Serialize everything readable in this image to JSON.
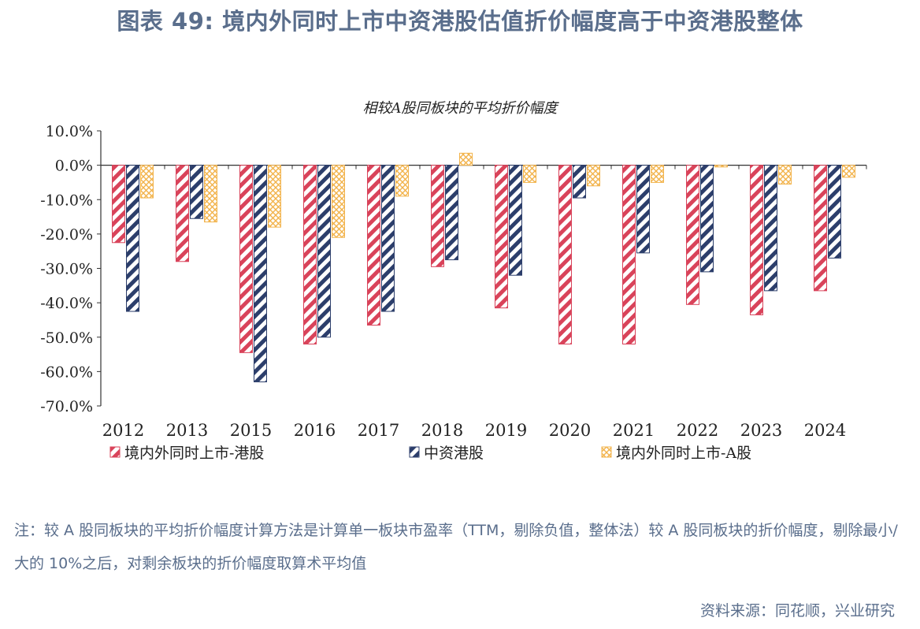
{
  "figure_title": "图表 49: 境内外同时上市中资港股估值折价幅度高于中资港股整体",
  "note": "注：较 A 股同板块的平均折价幅度计算方法是计算单一板块市盈率（TTM，剔除负值，整体法）较 A 股同板块的折价幅度，剔除最小/大的 10%之后，对剩余板块的折价幅度取算术平均值",
  "source": "资料来源：同花顺，兴业研究",
  "colors": {
    "text": "#5A6E8C",
    "s1": "#D9435A",
    "s2": "#2C3E6B",
    "s3": "#F2B34B"
  },
  "chart_data": {
    "type": "bar",
    "title": "相较A股同板块的平均折价幅度",
    "xlabel": "",
    "ylabel": "",
    "ylim": [
      -70,
      10
    ],
    "y_ticks": [
      "10.0%",
      "0.0%",
      "-10.0%",
      "-20.0%",
      "-30.0%",
      "-40.0%",
      "-50.0%",
      "-60.0%",
      "-70.0%"
    ],
    "y_tick_values": [
      10,
      0,
      -10,
      -20,
      -30,
      -40,
      -50,
      -60,
      -70
    ],
    "categories": [
      "2012",
      "2013",
      "2015",
      "2016",
      "2017",
      "2018",
      "2019",
      "2020",
      "2021",
      "2022",
      "2023",
      "2024"
    ],
    "series": [
      {
        "name": "境内外同时上市-港股",
        "color": "#D9435A",
        "pattern": "diagonal",
        "values": [
          -22.5,
          -28.0,
          -54.5,
          -52.0,
          -46.5,
          -29.5,
          -41.5,
          -52.0,
          -52.0,
          -40.5,
          -43.5,
          -36.5
        ]
      },
      {
        "name": "中资港股",
        "color": "#2C3E6B",
        "pattern": "diagonal",
        "values": [
          -42.5,
          -15.5,
          -63.0,
          -50.0,
          -42.5,
          -27.5,
          -32.0,
          -9.5,
          -25.5,
          -31.0,
          -36.5,
          -27.0
        ]
      },
      {
        "name": "境内外同时上市-A股",
        "color": "#F2B34B",
        "pattern": "crosshatch",
        "values": [
          -9.5,
          -16.5,
          -18.0,
          -21.0,
          -9.0,
          3.5,
          -5.0,
          -6.0,
          -5.0,
          -0.5,
          -5.5,
          -3.5
        ]
      }
    ],
    "grid": false,
    "legend_position": "bottom"
  }
}
